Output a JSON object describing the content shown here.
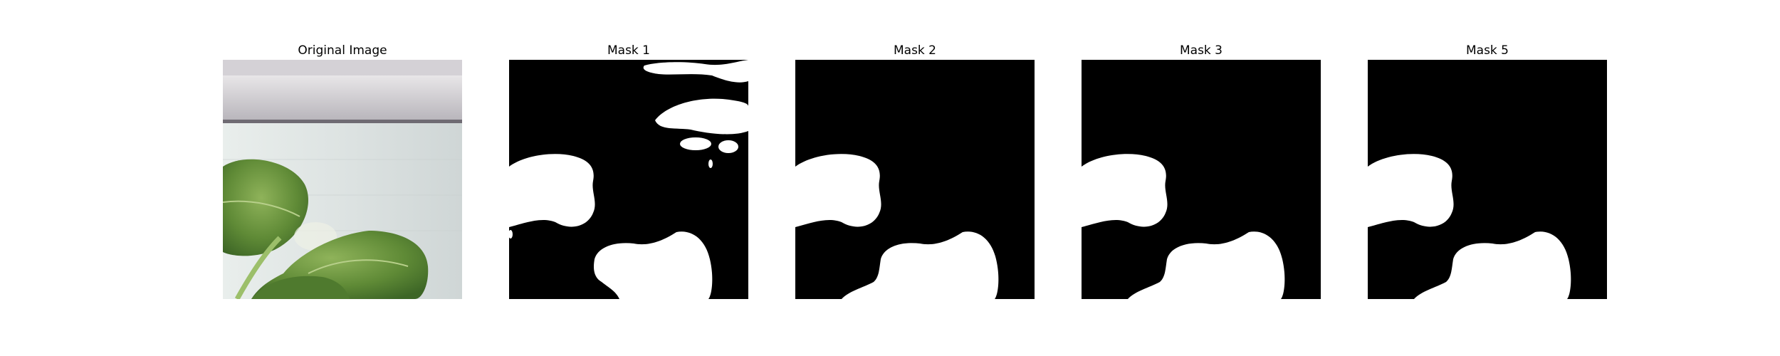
{
  "panels": [
    {
      "title": "Original Image",
      "kind": "photo"
    },
    {
      "title": "Mask 1",
      "kind": "mask"
    },
    {
      "title": "Mask 2",
      "kind": "mask"
    },
    {
      "title": "Mask 3",
      "kind": "mask"
    },
    {
      "title": "Mask 5",
      "kind": "mask"
    }
  ],
  "colors": {
    "background": "#ffffff",
    "mask_background": "#000000",
    "mask_foreground": "#ffffff",
    "leaf": "#5f8a36",
    "wall": "#dfe4e3"
  }
}
